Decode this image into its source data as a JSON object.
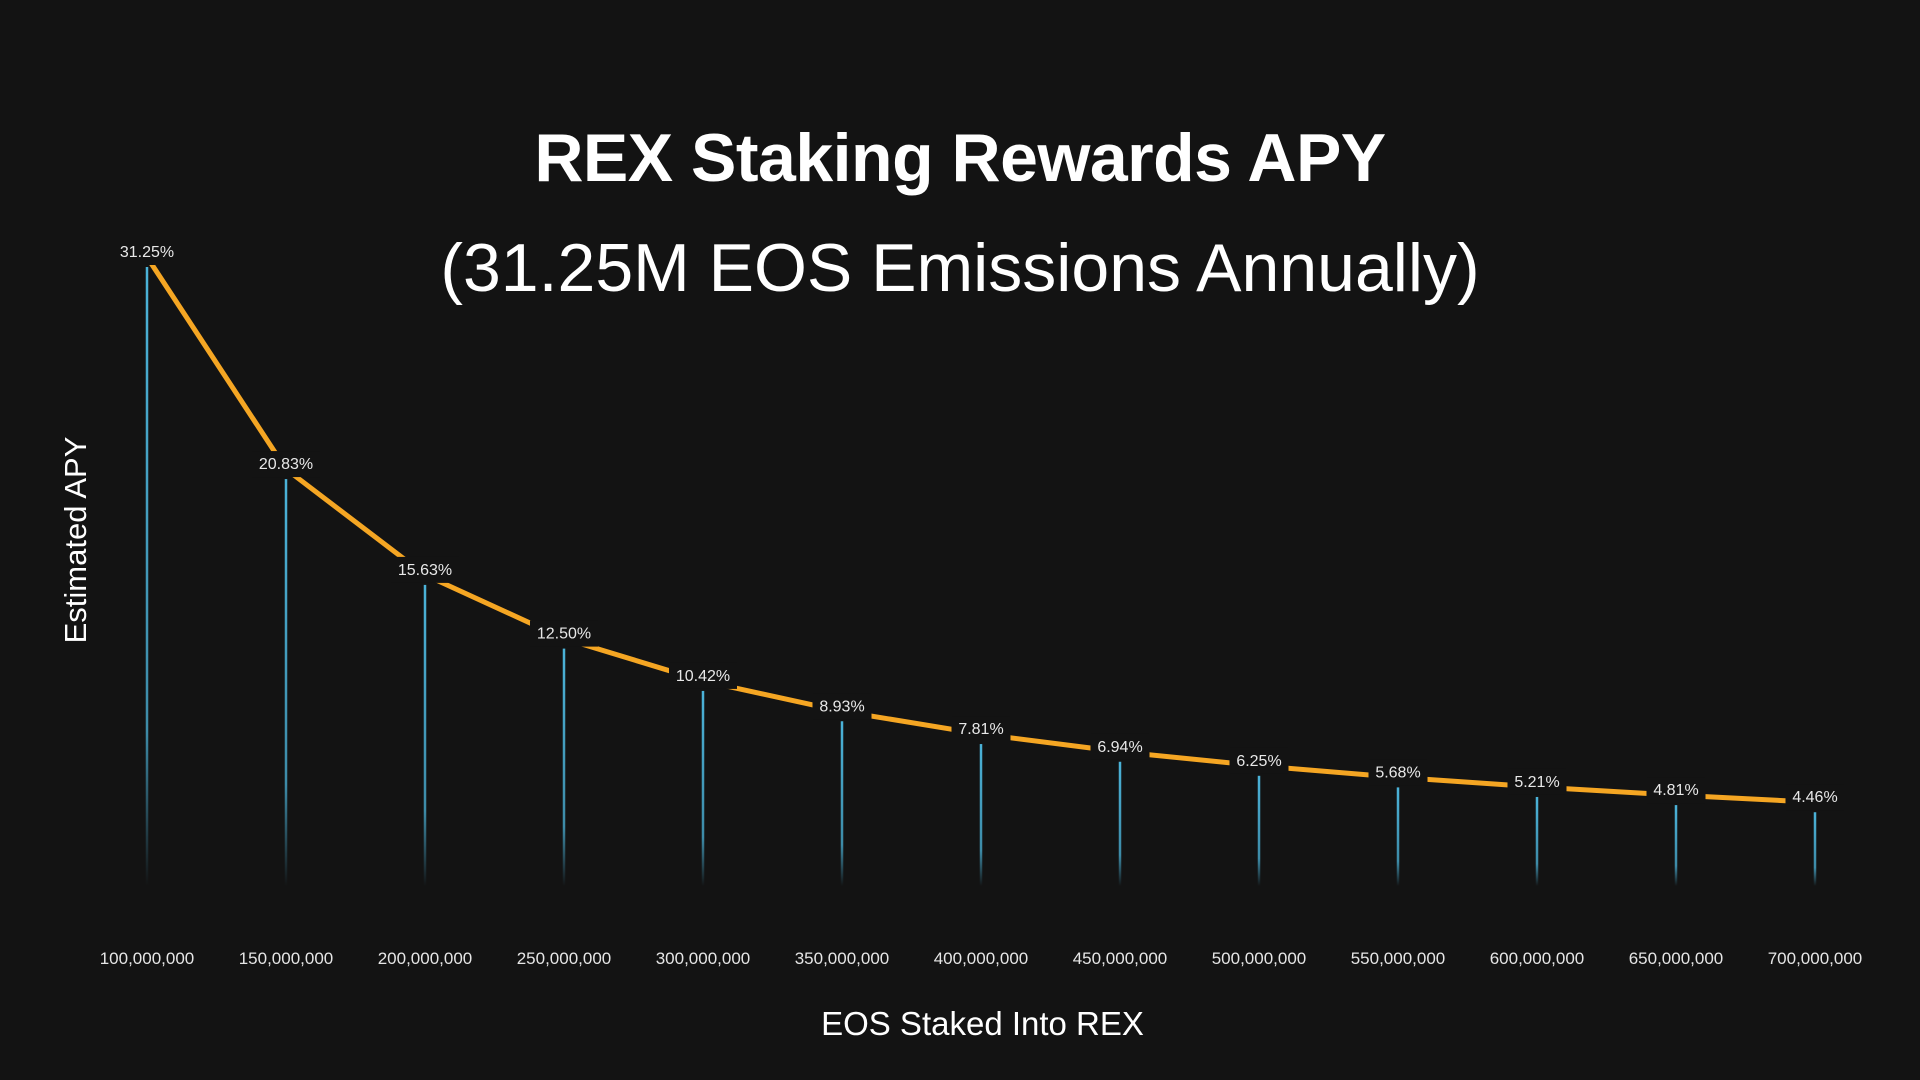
{
  "chart_data": {
    "type": "line",
    "title": "REX Staking Rewards APY",
    "subtitle": "(31.25M EOS Emissions Annually)",
    "xlabel": "EOS Staked Into REX",
    "ylabel": "Estimated APY",
    "categories": [
      "100,000,000",
      "150,000,000",
      "200,000,000",
      "250,000,000",
      "300,000,000",
      "350,000,000",
      "400,000,000",
      "450,000,000",
      "500,000,000",
      "550,000,000",
      "600,000,000",
      "650,000,000",
      "700,000,000"
    ],
    "x": [
      100000000,
      150000000,
      200000000,
      250000000,
      300000000,
      350000000,
      400000000,
      450000000,
      500000000,
      550000000,
      600000000,
      650000000,
      700000000
    ],
    "series": [
      {
        "name": "Estimated APY",
        "values": [
          31.25,
          20.83,
          15.63,
          12.5,
          10.42,
          8.93,
          7.81,
          6.94,
          6.25,
          5.68,
          5.21,
          4.81,
          4.46
        ],
        "labels": [
          "31.25%",
          "20.83%",
          "15.63%",
          "12.50%",
          "10.42%",
          "8.93%",
          "7.81%",
          "6.94%",
          "6.25%",
          "5.68%",
          "5.21%",
          "4.81%",
          "4.46%"
        ]
      }
    ],
    "ylim": [
      0,
      31.25
    ],
    "grid": false,
    "legend": "none",
    "colors": {
      "background": "#131313",
      "line": "#F5A623",
      "stem": "#4BB3D9",
      "text": "#FFFFFF"
    }
  }
}
